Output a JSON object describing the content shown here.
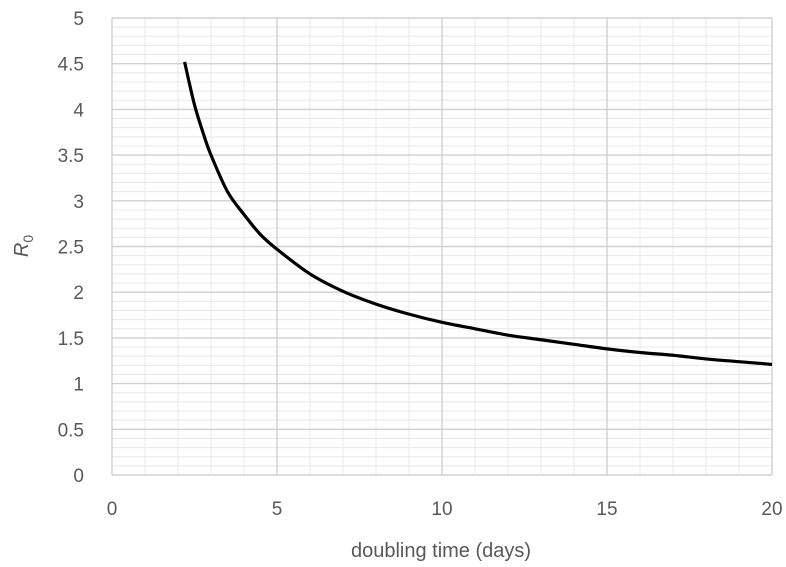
{
  "chart_data": {
    "type": "line",
    "title": "",
    "xlabel": "doubling time (days)",
    "ylabel": {
      "main": "R",
      "subscript": "0"
    },
    "xlim": [
      0,
      20
    ],
    "ylim": [
      0,
      5
    ],
    "x_ticks": [
      "0",
      "5",
      "10",
      "15",
      "20"
    ],
    "y_ticks": [
      "0",
      "0.5",
      "1",
      "1.5",
      "2",
      "2.5",
      "3",
      "3.5",
      "4",
      "4.5",
      "5"
    ],
    "grid": {
      "major": true,
      "minor": true
    },
    "legend": "none",
    "series": [
      {
        "color": "#000000",
        "x": [
          2.2,
          2.5,
          2.8,
          3.0,
          3.5,
          4.0,
          4.5,
          5.0,
          6.0,
          7.0,
          8.0,
          9.0,
          10.0,
          11.0,
          12.0,
          13.0,
          14.0,
          15.0,
          16.0,
          17.0,
          18.0,
          19.0,
          20.0
        ],
        "y": [
          4.52,
          4.05,
          3.7,
          3.5,
          3.1,
          2.85,
          2.63,
          2.47,
          2.2,
          2.01,
          1.87,
          1.76,
          1.67,
          1.6,
          1.53,
          1.48,
          1.43,
          1.38,
          1.34,
          1.31,
          1.27,
          1.24,
          1.21
        ]
      }
    ]
  },
  "colors": {
    "major_grid": "#d0d0d0",
    "minor_grid": "#e8e8e8",
    "tick_text": "#595959"
  }
}
